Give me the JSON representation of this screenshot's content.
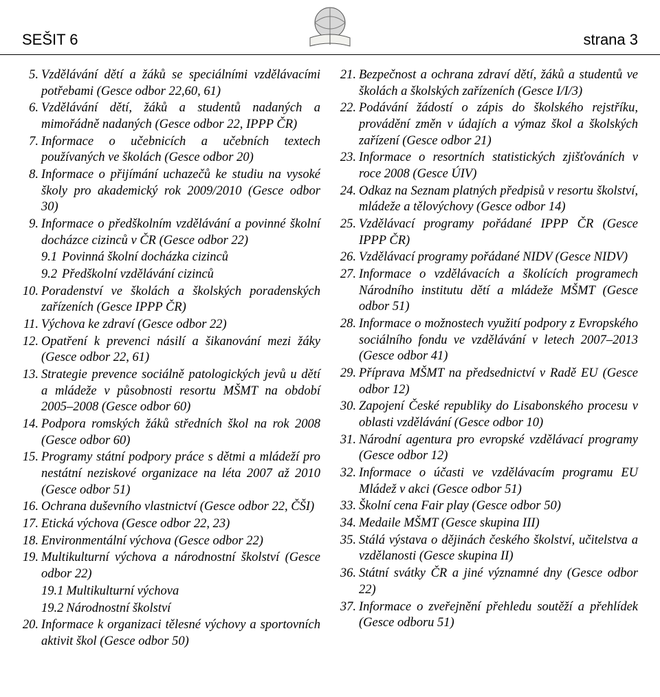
{
  "header": {
    "left": "SEŠIT 6",
    "right": "strana 3"
  },
  "items": [
    {
      "n": "5.",
      "t": "Vzdělávání dětí a žáků se speciálními vzdělávacími potřebami (Gesce odbor 22,60, 61)"
    },
    {
      "n": "6.",
      "t": "Vzdělávání dětí, žáků a studentů nadaných a mimořádně nadaných (Gesce odbor 22, IPPP ČR)"
    },
    {
      "n": "7.",
      "t": "Informace o učebnicích a učebních textech používaných ve školách (Gesce odbor 20)"
    },
    {
      "n": "8.",
      "t": "Informace o přijímání uchazečů ke studiu na vysoké školy pro akademický rok 2009/2010 (Gesce odbor 30)"
    },
    {
      "n": "9.",
      "t": "Informace o předškolním vzdělávání a povinné školní docházce cizinců v ČR (Gesce odbor 22)",
      "subs": [
        {
          "n": "9.1",
          "t": "Povinná školní docházka cizinců"
        },
        {
          "n": "9.2",
          "t": "Předškolní vzdělávání cizinců"
        }
      ]
    },
    {
      "n": "10.",
      "t": "Poradenství ve školách a školských poradenských zařízeních (Gesce IPPP ČR)"
    },
    {
      "n": "11.",
      "t": "Výchova ke zdraví (Gesce odbor 22)"
    },
    {
      "n": "12.",
      "t": "Opatření k prevenci násilí a šikanování mezi žáky (Gesce odbor 22, 61)"
    },
    {
      "n": "13.",
      "t": "Strategie prevence sociálně patologických jevů u dětí a mládeže v působnosti resortu MŠMT na období 2005–2008 (Gesce odbor 60)"
    },
    {
      "n": "14.",
      "t": "Podpora romských žáků středních škol na rok 2008 (Gesce odbor 60)"
    },
    {
      "n": "15.",
      "t": "Programy státní podpory práce s dětmi a mládeží pro nestátní neziskové organizace na léta 2007 až 2010 (Gesce odbor 51)"
    },
    {
      "n": "16.",
      "t": "Ochrana duševního vlastnictví (Gesce odbor 22, ČŠI)"
    },
    {
      "n": "17.",
      "t": "Etická výchova (Gesce odbor 22, 23)"
    },
    {
      "n": "18.",
      "t": "Environmentální výchova (Gesce odbor 22)"
    },
    {
      "n": "19.",
      "t": "Multikulturní výchova a národnostní školství (Gesce odbor 22)",
      "subs": [
        {
          "n": "19.1",
          "t": "Multikulturní výchova"
        },
        {
          "n": "19.2",
          "t": "Národnostní školství"
        }
      ]
    },
    {
      "n": "20.",
      "t": "Informace k organizaci tělesné výchovy a sportovních aktivit škol (Gesce odbor 50)"
    },
    {
      "n": "21.",
      "t": "Bezpečnost a ochrana zdraví dětí, žáků a studentů ve školách a školských zařízeních (Gesce I/I/3)"
    },
    {
      "n": "22.",
      "t": "Podávání žádostí o zápis do školského rejstříku, provádění změn v údajích a výmaz škol a školských zařízení (Gesce odbor 21)"
    },
    {
      "n": "23.",
      "t": "Informace o resortních statistických zjišťováních v roce 2008 (Gesce ÚIV)"
    },
    {
      "n": "24.",
      "t": "Odkaz na Seznam platných předpisů v resortu školství, mládeže a tělovýchovy (Gesce odbor 14)"
    },
    {
      "n": "25.",
      "t": "Vzdělávací programy pořádané IPPP ČR (Gesce IPPP ČR)"
    },
    {
      "n": "26.",
      "t": "Vzdělávací programy pořádané NIDV (Gesce NIDV)"
    },
    {
      "n": "27.",
      "t": "Informace o vzdělávacích a školících programech Národního institutu dětí a mládeže MŠMT (Gesce odbor 51)"
    },
    {
      "n": "28.",
      "t": "Informace o možnostech využití podpory z Evropského sociálního fondu ve vzdělávání v letech 2007–2013 (Gesce odbor 41)"
    },
    {
      "n": "29.",
      "t": "Příprava MŠMT na předsednictví v Radě EU (Gesce odbor 12)"
    },
    {
      "n": "30.",
      "t": "Zapojení České republiky do Lisabonského procesu v oblasti vzdělávání (Gesce odbor 10)"
    },
    {
      "n": "31.",
      "t": "Národní agentura pro evropské vzdělávací programy (Gesce odbor 12)"
    },
    {
      "n": "32.",
      "t": "Informace o účasti ve vzdělávacím programu EU Mládež v akci (Gesce odbor 51)"
    },
    {
      "n": "33.",
      "t": "Školní cena Fair play (Gesce odbor 50)"
    },
    {
      "n": "34.",
      "t": "Medaile MŠMT (Gesce skupina III)"
    },
    {
      "n": "35.",
      "t": "Stálá výstava o dějinách českého školství, učitelstva a vzdělanosti (Gesce skupina II)"
    },
    {
      "n": "36.",
      "t": "Státní svátky ČR a jiné významné dny (Gesce odbor 22)"
    },
    {
      "n": "37.",
      "t": "Informace o zveřejnění přehledu soutěží a přehlídek (Gesce odboru 51)"
    }
  ]
}
